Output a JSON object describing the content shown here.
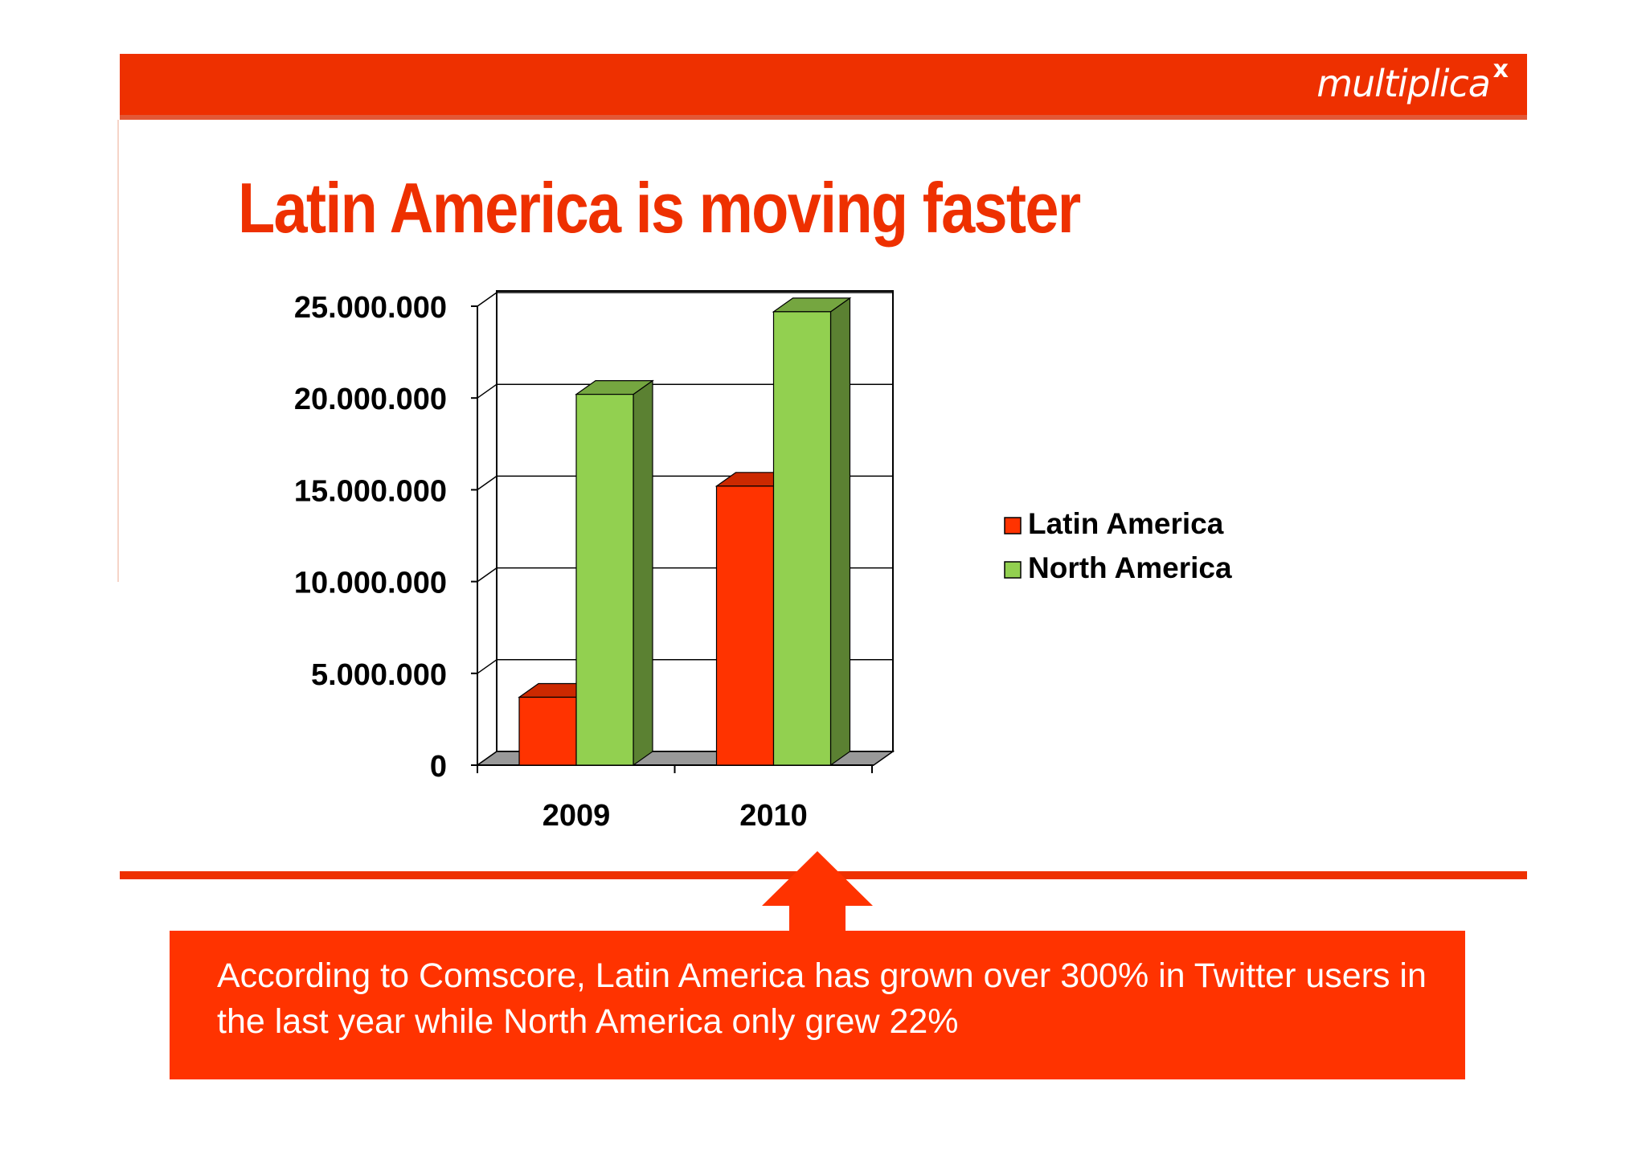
{
  "brand": {
    "logo_text": "multiplica",
    "logo_mark": "x",
    "color": "#ee3000"
  },
  "slide": {
    "title": "Latin America is moving faster",
    "callout": "According to Comscore, Latin America has grown over 300% in Twitter users in the last year while North America only grew 22%"
  },
  "chart_data": {
    "type": "bar",
    "style": "3d-clustered",
    "categories": [
      "2009",
      "2010"
    ],
    "series": [
      {
        "name": "Latin America",
        "values": [
          3700000,
          15200000
        ],
        "color": "#ff3300"
      },
      {
        "name": "North America",
        "values": [
          20200000,
          24700000
        ],
        "color": "#92d050"
      }
    ],
    "y_ticks": [
      "0",
      "5.000.000",
      "10.000.000",
      "15.000.000",
      "20.000.000",
      "25.000.000"
    ],
    "ylim": [
      0,
      25000000
    ],
    "grid": true,
    "legend_position": "right",
    "title": "",
    "xlabel": "",
    "ylabel": ""
  }
}
